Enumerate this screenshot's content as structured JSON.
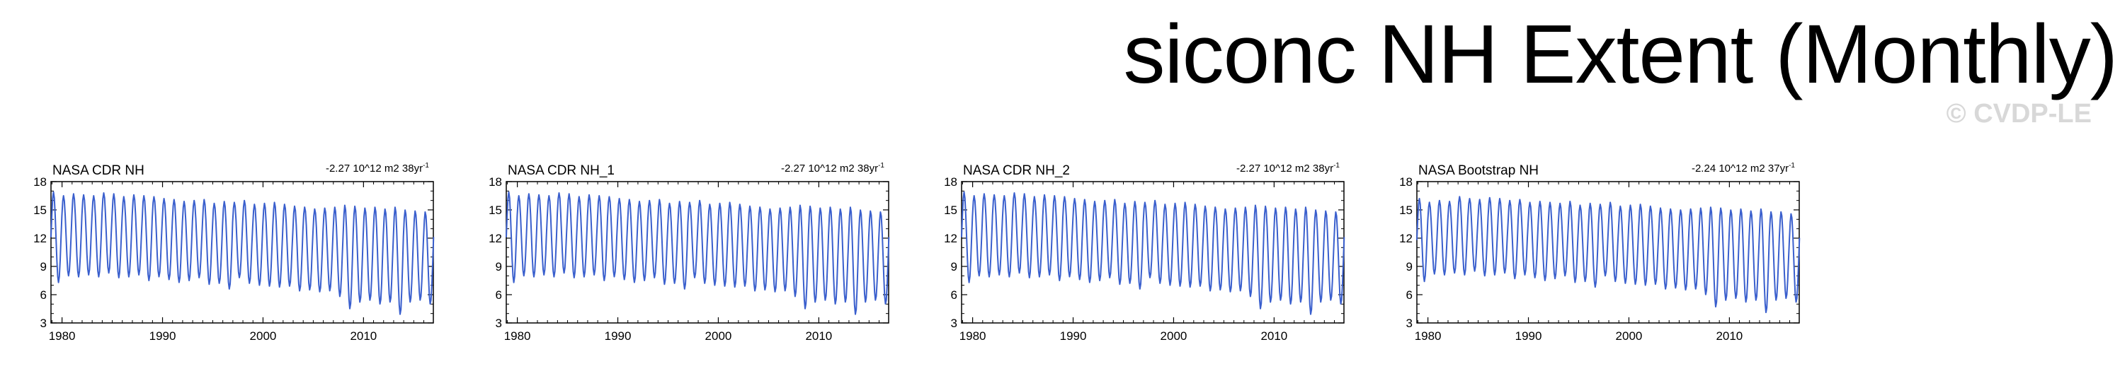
{
  "title": "siconc NH Extent (Monthly)",
  "watermark": "© CVDP-LE",
  "chart_data": [
    {
      "type": "line",
      "title": "NASA CDR NH",
      "trend": "-2.27 10^12 m2 38yr",
      "trend_sup": "-1",
      "xlim": [
        1978.9,
        2016.95
      ],
      "ylim": [
        3,
        18
      ],
      "yticks": [
        3,
        6,
        9,
        12,
        15,
        18
      ],
      "xticks": [
        1980,
        1990,
        2000,
        2010
      ],
      "line_color": "#3a5fcd",
      "series": [
        {
          "x_start": 1978.9,
          "x_step": 0.0833,
          "cycle_max": [
            16.9,
            16.5,
            16.7,
            16.6,
            16.5,
            16.8,
            16.7,
            16.4,
            16.6,
            16.5,
            16.4,
            16.2,
            16.1,
            15.9,
            16.0,
            16.1,
            15.7,
            15.9,
            15.8,
            16.0,
            15.6,
            15.7,
            15.8,
            15.6,
            15.4,
            15.3,
            15.1,
            15.2,
            15.3,
            15.5,
            15.4,
            15.2,
            15.3,
            15.1,
            15.3,
            15.0,
            14.9,
            14.8
          ],
          "cycle_min": [
            7.3,
            8.0,
            7.9,
            8.1,
            7.9,
            8.3,
            7.8,
            7.9,
            8.1,
            7.5,
            7.9,
            7.6,
            7.3,
            7.5,
            7.8,
            7.1,
            7.2,
            6.6,
            7.8,
            7.2,
            7.0,
            6.9,
            6.8,
            6.9,
            6.4,
            6.5,
            6.3,
            6.4,
            5.8,
            4.5,
            5.2,
            5.4,
            5.0,
            5.2,
            3.9,
            5.2,
            5.4,
            5.0,
            5.6
          ]
        }
      ]
    },
    {
      "type": "line",
      "title": "NASA CDR NH_1",
      "trend": "-2.27 10^12 m2 38yr",
      "trend_sup": "-1",
      "xlim": [
        1978.9,
        2016.95
      ],
      "ylim": [
        3,
        18
      ],
      "yticks": [
        3,
        6,
        9,
        12,
        15,
        18
      ],
      "xticks": [
        1980,
        1990,
        2000,
        2010
      ],
      "line_color": "#3a5fcd",
      "series": [
        {
          "x_start": 1978.9,
          "x_step": 0.0833,
          "cycle_max": [
            16.9,
            16.5,
            16.7,
            16.6,
            16.5,
            16.8,
            16.7,
            16.4,
            16.6,
            16.5,
            16.4,
            16.2,
            16.1,
            15.9,
            16.0,
            16.1,
            15.7,
            15.9,
            15.8,
            16.0,
            15.6,
            15.7,
            15.8,
            15.6,
            15.4,
            15.3,
            15.1,
            15.2,
            15.3,
            15.5,
            15.4,
            15.2,
            15.3,
            15.1,
            15.3,
            15.0,
            14.9,
            14.8
          ],
          "cycle_min": [
            7.3,
            8.0,
            7.9,
            8.1,
            7.9,
            8.3,
            7.8,
            7.9,
            8.1,
            7.5,
            7.9,
            7.6,
            7.3,
            7.5,
            7.8,
            7.1,
            7.2,
            6.6,
            7.8,
            7.2,
            7.0,
            6.9,
            6.8,
            6.9,
            6.4,
            6.5,
            6.3,
            6.4,
            5.8,
            4.5,
            5.2,
            5.4,
            5.0,
            5.2,
            3.9,
            5.2,
            5.4,
            5.0,
            5.6
          ]
        }
      ]
    },
    {
      "type": "line",
      "title": "NASA CDR NH_2",
      "trend": "-2.27 10^12 m2 38yr",
      "trend_sup": "-1",
      "xlim": [
        1978.9,
        2016.95
      ],
      "ylim": [
        3,
        18
      ],
      "yticks": [
        3,
        6,
        9,
        12,
        15,
        18
      ],
      "xticks": [
        1980,
        1990,
        2000,
        2010
      ],
      "line_color": "#3a5fcd",
      "series": [
        {
          "x_start": 1978.9,
          "x_step": 0.0833,
          "cycle_max": [
            16.9,
            16.5,
            16.7,
            16.6,
            16.5,
            16.8,
            16.7,
            16.4,
            16.6,
            16.5,
            16.4,
            16.2,
            16.1,
            15.9,
            16.0,
            16.1,
            15.7,
            15.9,
            15.8,
            16.0,
            15.6,
            15.7,
            15.8,
            15.6,
            15.4,
            15.3,
            15.1,
            15.2,
            15.3,
            15.5,
            15.4,
            15.2,
            15.3,
            15.1,
            15.3,
            15.0,
            14.9,
            14.8
          ],
          "cycle_min": [
            7.3,
            8.0,
            7.9,
            8.1,
            7.9,
            8.3,
            7.8,
            7.9,
            8.1,
            7.5,
            7.9,
            7.6,
            7.3,
            7.5,
            7.8,
            7.1,
            7.2,
            6.6,
            7.8,
            7.2,
            7.0,
            6.9,
            6.8,
            6.9,
            6.4,
            6.5,
            6.3,
            6.4,
            5.8,
            4.5,
            5.2,
            5.4,
            5.0,
            5.2,
            3.9,
            5.2,
            5.4,
            5.0,
            5.6
          ]
        }
      ]
    },
    {
      "type": "line",
      "title": "NASA Bootstrap NH",
      "trend": "-2.24 10^12 m2 37yr",
      "trend_sup": "-1",
      "xlim": [
        1978.9,
        2016.95
      ],
      "ylim": [
        3,
        18
      ],
      "yticks": [
        3,
        6,
        9,
        12,
        15,
        18
      ],
      "xticks": [
        1980,
        1990,
        2000,
        2010
      ],
      "line_color": "#3a5fcd",
      "series": [
        {
          "x_start": 1978.9,
          "x_step": 0.0833,
          "cycle_max": [
            16.2,
            15.8,
            16.0,
            15.9,
            16.4,
            16.2,
            16.1,
            16.3,
            16.2,
            16.0,
            16.1,
            15.8,
            15.9,
            15.8,
            15.7,
            15.9,
            15.5,
            15.7,
            15.6,
            15.8,
            15.4,
            15.5,
            15.6,
            15.4,
            15.2,
            15.1,
            15.0,
            15.1,
            15.2,
            15.3,
            15.2,
            15.0,
            15.1,
            14.9,
            15.1,
            14.8,
            14.8,
            14.6
          ],
          "cycle_min": [
            7.4,
            8.2,
            8.1,
            8.3,
            8.1,
            8.5,
            8.0,
            8.1,
            8.3,
            7.7,
            8.1,
            7.8,
            7.5,
            7.7,
            8.0,
            7.3,
            7.4,
            6.8,
            8.0,
            7.4,
            7.2,
            7.1,
            7.0,
            7.1,
            6.6,
            6.7,
            6.5,
            6.6,
            6.0,
            4.7,
            5.4,
            5.6,
            5.2,
            5.4,
            4.1,
            5.4,
            5.6,
            5.2,
            5.8
          ]
        }
      ]
    }
  ]
}
